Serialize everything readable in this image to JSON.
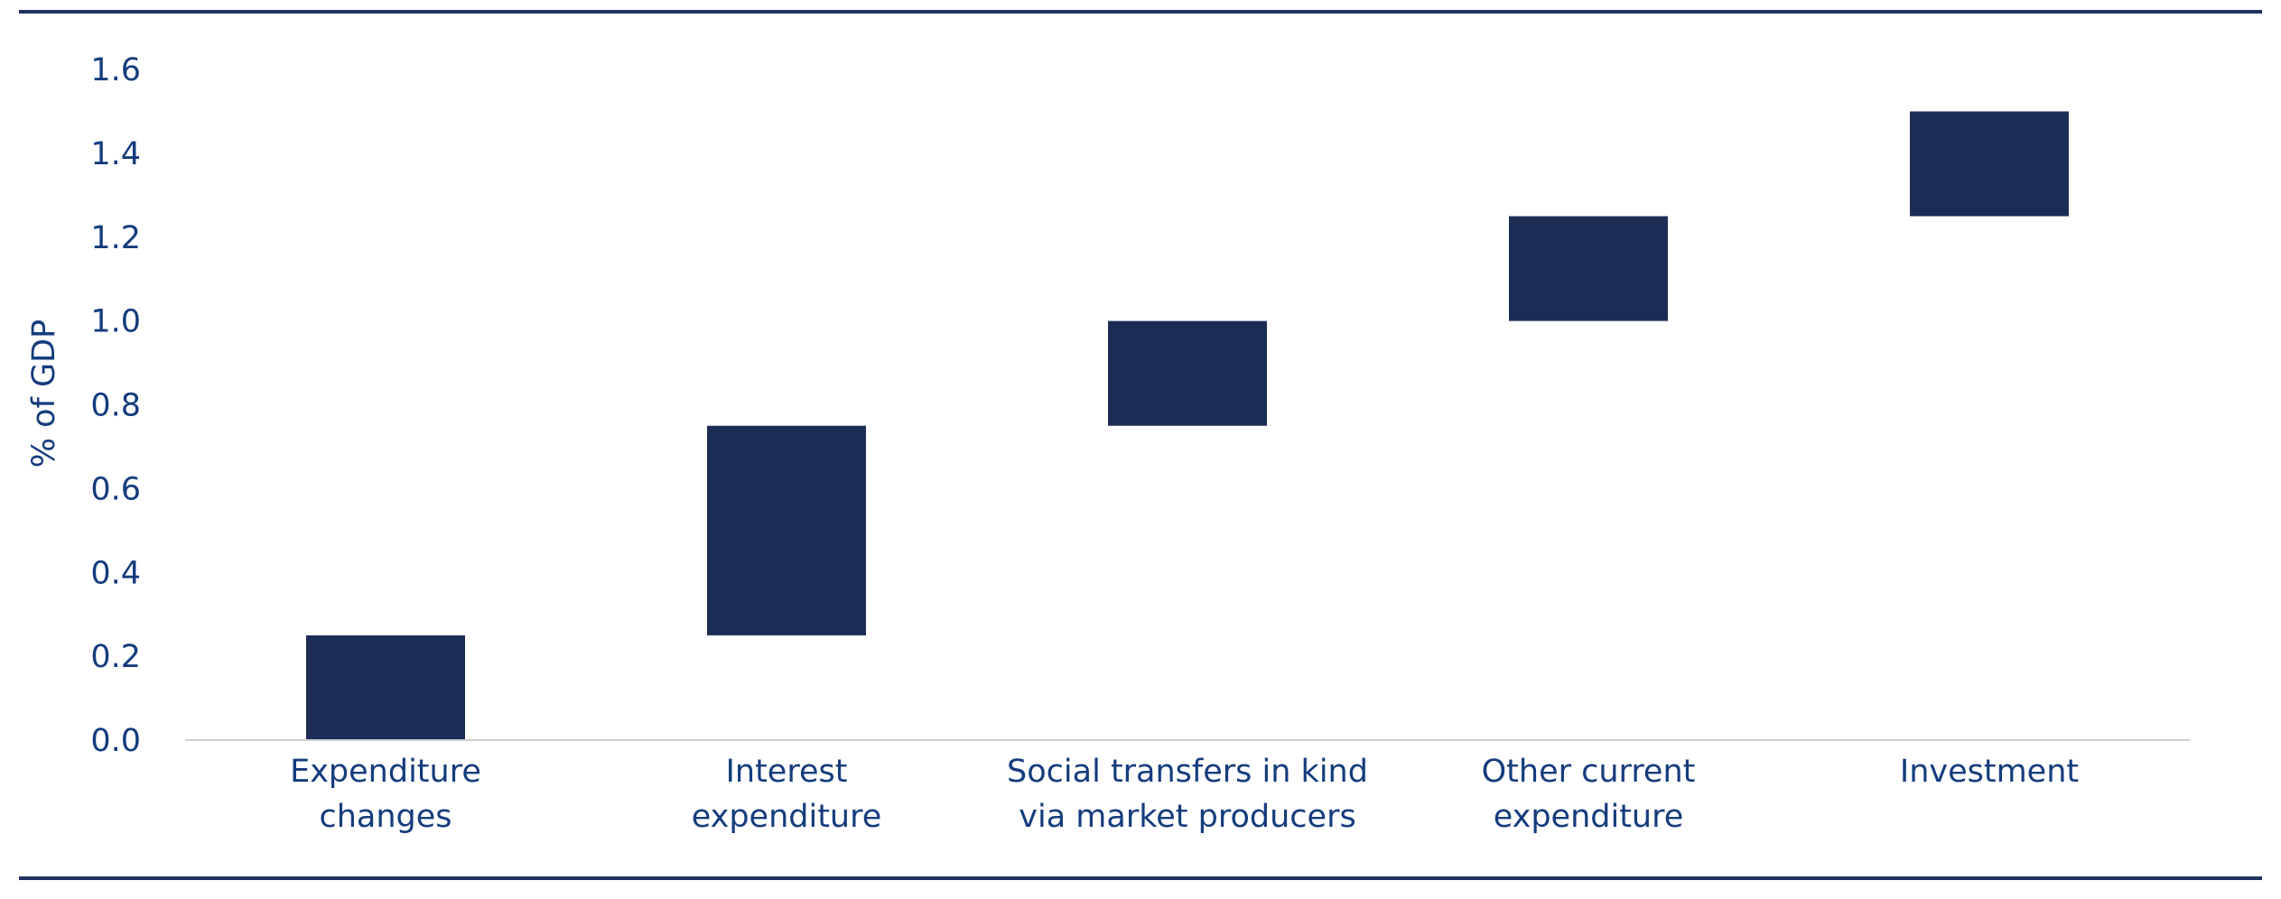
{
  "chart_data": {
    "type": "bar",
    "subtype": "waterfall",
    "title": "",
    "xlabel": "",
    "ylabel": "% of GDP",
    "ylim": [
      0,
      1.6
    ],
    "yticks": [
      "0.0",
      "0.2",
      "0.4",
      "0.6",
      "0.8",
      "1.0",
      "1.2",
      "1.4",
      "1.6"
    ],
    "grid": false,
    "categories": [
      [
        "Expenditure",
        "changes"
      ],
      [
        "Interest",
        "expenditure"
      ],
      [
        "Social transfers in kind",
        "via market producers"
      ],
      [
        "Other current",
        "expenditure"
      ],
      [
        "Investment"
      ]
    ],
    "bars": [
      {
        "base": 0.0,
        "top": 0.25
      },
      {
        "base": 0.25,
        "top": 0.75
      },
      {
        "base": 0.75,
        "top": 1.0
      },
      {
        "base": 1.0,
        "top": 1.25
      },
      {
        "base": 1.25,
        "top": 1.5
      }
    ],
    "colors": {
      "bar": "#1c2d55",
      "text": "#143c7d",
      "rule": "#1f3160",
      "axis": "#d0d0d0"
    }
  }
}
